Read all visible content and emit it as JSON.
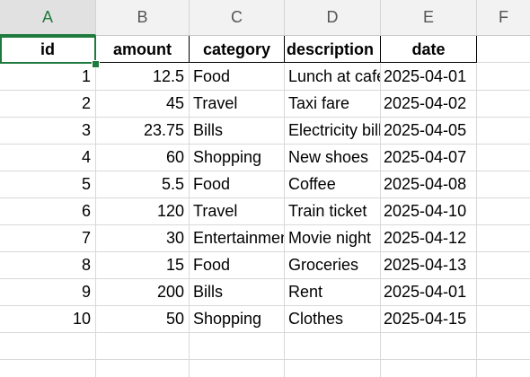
{
  "column_headers": [
    "A",
    "B",
    "C",
    "D",
    "E",
    "F"
  ],
  "selected_column": "A",
  "active_cell": "A1",
  "table": {
    "headers": [
      "id",
      "amount",
      "category",
      "description",
      "date"
    ],
    "rows": [
      [
        "1",
        "12.5",
        "Food",
        "Lunch at cafe",
        "2025-04-01"
      ],
      [
        "2",
        "45",
        "Travel",
        "Taxi fare",
        "2025-04-02"
      ],
      [
        "3",
        "23.75",
        "Bills",
        "Electricity bill",
        "2025-04-05"
      ],
      [
        "4",
        "60",
        "Shopping",
        "New shoes",
        "2025-04-07"
      ],
      [
        "5",
        "5.5",
        "Food",
        "Coffee",
        "2025-04-08"
      ],
      [
        "6",
        "120",
        "Travel",
        "Train ticket",
        "2025-04-10"
      ],
      [
        "7",
        "30",
        "Entertainment",
        "Movie night",
        "2025-04-12"
      ],
      [
        "8",
        "15",
        "Food",
        "Groceries",
        "2025-04-13"
      ],
      [
        "9",
        "200",
        "Bills",
        "Rent",
        "2025-04-01"
      ],
      [
        "10",
        "50",
        "Shopping",
        "Clothes",
        "2025-04-15"
      ]
    ]
  },
  "colors": {
    "selection": "#1f7a3d",
    "header_bg": "#f2f2f2",
    "gridline": "#d9d9d9"
  }
}
